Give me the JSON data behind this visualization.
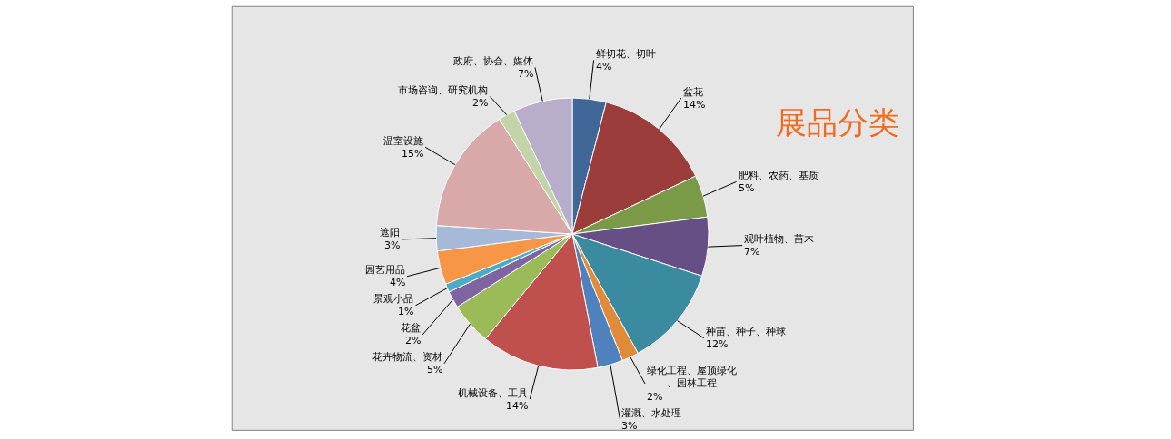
{
  "chart_data": {
    "type": "pie",
    "title": "展品分类",
    "categories": [
      "鲜切花、切叶",
      "盆花",
      "肥料、农药、基质",
      "观叶植物、苗木",
      "种苗、种子、种球",
      "绿化工程、屋顶绿化、园林工程",
      "灌溉、水处理",
      "机械设备、工具",
      "花卉物流、资材",
      "花盆",
      "景观小品",
      "园艺用品",
      "遮阳",
      "温室设施",
      "市场咨询、研究机构",
      "政府、协会、媒体"
    ],
    "values": [
      4,
      14,
      5,
      7,
      12,
      2,
      3,
      14,
      5,
      2,
      1,
      4,
      3,
      15,
      2,
      7
    ],
    "value_labels": [
      "4%",
      "14%",
      "5%",
      "7%",
      "12%",
      "2%",
      "3%",
      "14%",
      "5%",
      "2%",
      "1%",
      "4%",
      "3%",
      "15%",
      "2%",
      "7%"
    ],
    "colors": [
      "#3f6797",
      "#9b3d3b",
      "#7a9a48",
      "#654f85",
      "#3a8aa0",
      "#e08a3a",
      "#4f81bd",
      "#c0504d",
      "#9bbb59",
      "#8064a2",
      "#4bacc6",
      "#f79646",
      "#a7b9d9",
      "#d9a8a8",
      "#c3d5a8",
      "#b9aec9"
    ],
    "legend": false
  }
}
